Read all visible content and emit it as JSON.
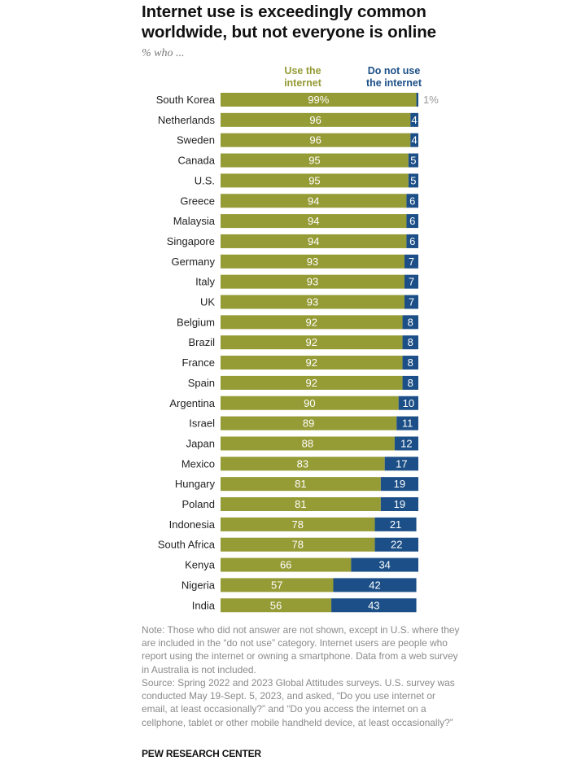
{
  "chart_data": {
    "type": "bar",
    "stacked": true,
    "orientation": "horizontal",
    "title": "Internet use is exceedingly common worldwide, but not everyone is online",
    "subtitle": "% who ...",
    "xlabel": "",
    "ylabel": "",
    "xlim": [
      0,
      100
    ],
    "grid": false,
    "categories": [
      "South Korea",
      "Netherlands",
      "Sweden",
      "Canada",
      "U.S.",
      "Greece",
      "Malaysia",
      "Singapore",
      "Germany",
      "Italy",
      "UK",
      "Belgium",
      "Brazil",
      "France",
      "Spain",
      "Argentina",
      "Israel",
      "Japan",
      "Mexico",
      "Hungary",
      "Poland",
      "Indonesia",
      "South Africa",
      "Kenya",
      "Nigeria",
      "India"
    ],
    "series": [
      {
        "name": "Use the internet",
        "color": "#959b35",
        "values": [
          99,
          96,
          96,
          95,
          95,
          94,
          94,
          94,
          93,
          93,
          93,
          92,
          92,
          92,
          92,
          90,
          89,
          88,
          83,
          81,
          81,
          78,
          78,
          66,
          57,
          56
        ]
      },
      {
        "name": "Do not use the internet",
        "color": "#1c4f87",
        "values": [
          1,
          4,
          4,
          5,
          5,
          6,
          6,
          6,
          7,
          7,
          7,
          8,
          8,
          8,
          8,
          10,
          11,
          12,
          17,
          19,
          19,
          21,
          22,
          34,
          42,
          43
        ]
      }
    ],
    "first_row_suffix": "%",
    "legend": {
      "placement": "top",
      "use_label_line1": "Use the",
      "use_label_line2": "internet",
      "not_label_line1": "Do not use",
      "not_label_line2": "the internet"
    }
  },
  "notes": {
    "note": "Note: Those who did not answer are not shown, except in U.S. where they are included in the “do not use” category. Internet users are people who report using the internet or owning a smartphone. Data from a web survey in Australia is not included.",
    "source": "Source: Spring 2022 and 2023 Global Attitudes surveys. U.S. survey was conducted May 19-Sept. 5, 2023, and asked, “Do you use internet or email, at least occasionally?” and “Do you access the internet on a cellphone, tablet or other mobile handheld device, at least occasionally?”"
  },
  "brand": "PEW RESEARCH CENTER"
}
